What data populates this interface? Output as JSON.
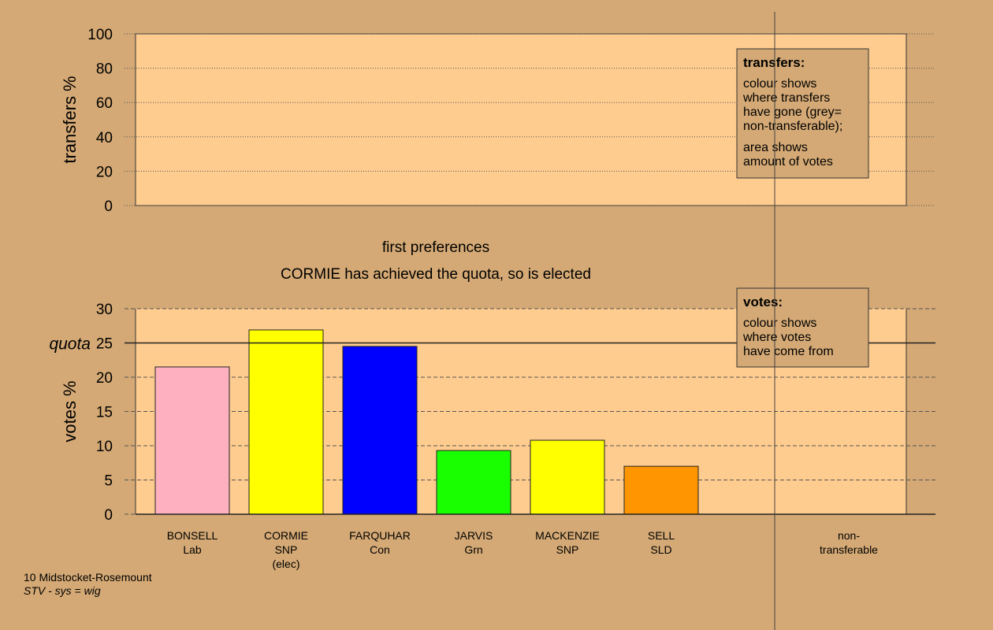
{
  "chart_data": [
    {
      "type": "bar",
      "ylabel": "transfers %",
      "ylim": [
        0,
        100
      ],
      "yticks": [
        0,
        20,
        40,
        60,
        80,
        100
      ],
      "grid": true,
      "plot_color": "#ffcc8f",
      "note": {
        "title": "transfers:",
        "lines": [
          [
            "colour shows",
            "where transfers",
            "have gone (grey=",
            "non-transferable);"
          ],
          [
            "area shows",
            "amount of votes"
          ]
        ]
      }
    },
    {
      "type": "bar",
      "title": "first preferences",
      "subtitle": "CORMIE has achieved the quota, so is elected",
      "ylabel": "votes %",
      "ylim": [
        0,
        30
      ],
      "yticks": [
        0,
        5,
        10,
        15,
        20,
        25,
        30
      ],
      "grid": true,
      "plot_color": "#ffcc8f",
      "categories": [
        [
          "BONSELL",
          "Lab"
        ],
        [
          "CORMIE",
          "SNP",
          "(elec)"
        ],
        [
          "FARQUHAR",
          "Con"
        ],
        [
          "JARVIS",
          "Grn"
        ],
        [
          "MACKENZIE",
          "SNP"
        ],
        [
          "SELL",
          "SLD"
        ],
        [
          "non-",
          "transferable"
        ]
      ],
      "values": [
        21.5,
        26.9,
        24.5,
        9.3,
        10.8,
        7.0,
        null
      ],
      "colors": [
        "#ffb0c0",
        "#ffff00",
        "#0000ff",
        "#1aff00",
        "#ffff00",
        "#ff9500",
        "#999999"
      ],
      "quota": {
        "label": "quota",
        "value": 25
      },
      "note": {
        "title": "votes:",
        "lines": [
          [
            "colour shows",
            "where votes",
            "have come from"
          ]
        ]
      }
    }
  ],
  "footer": {
    "constituency": "10 Midstocket-Rosemount",
    "system": "STV - sys = wig"
  }
}
